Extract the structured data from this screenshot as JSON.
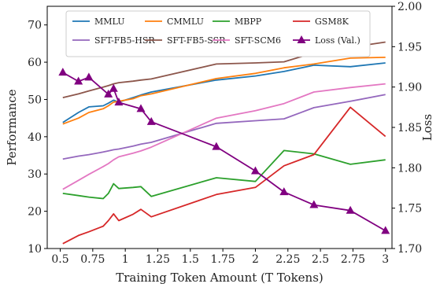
{
  "chart_data": {
    "type": "line",
    "title": "",
    "xlabel": "Training Token Amount (T Tokens)",
    "ylabel": "Performance",
    "y2label": "Loss",
    "xlim": [
      0.4,
      3.05
    ],
    "ylim": [
      10,
      75
    ],
    "y2lim": [
      1.7,
      2.0
    ],
    "x_ticks": [
      0.5,
      0.75,
      1,
      1.25,
      1.5,
      1.75,
      2,
      2.25,
      2.5,
      2.75,
      3
    ],
    "y_ticks": [
      10,
      20,
      30,
      40,
      50,
      60,
      70
    ],
    "y2_ticks": [
      1.7,
      1.75,
      1.8,
      1.85,
      1.9,
      1.95,
      2.0
    ],
    "legend_position": "top",
    "x": [
      0.52,
      0.64,
      0.72,
      0.83,
      0.87,
      0.91,
      0.95,
      1.06,
      1.12,
      1.2,
      1.7,
      2.0,
      2.22,
      2.45,
      2.73,
      3.0
    ],
    "series": [
      {
        "name": "MMLU",
        "axis": "left",
        "color": "#1f77b4",
        "values": [
          43.8,
          46.5,
          48.0,
          48.3,
          49.0,
          49.8,
          49.3,
          50.5,
          51.2,
          52.0,
          55.2,
          56.3,
          57.5,
          59.2,
          58.8,
          59.8
        ]
      },
      {
        "name": "CMMLU",
        "axis": "left",
        "color": "#ff7f0e",
        "values": [
          43.4,
          45.0,
          46.5,
          47.5,
          48.3,
          49.3,
          49.5,
          50.2,
          51.0,
          51.5,
          55.6,
          57.0,
          58.5,
          59.5,
          61.1,
          61.3
        ]
      },
      {
        "name": "MBPP",
        "axis": "left",
        "color": "#2ca02c",
        "values": [
          24.8,
          24.2,
          23.8,
          23.4,
          24.8,
          27.4,
          26.1,
          26.4,
          26.6,
          24.0,
          29.0,
          28.0,
          36.3,
          35.4,
          32.6,
          33.8
        ]
      },
      {
        "name": "GSM8K",
        "axis": "left",
        "color": "#d62728",
        "values": [
          11.3,
          13.5,
          14.5,
          16.0,
          17.5,
          19.3,
          17.5,
          19.2,
          20.5,
          18.5,
          24.5,
          26.4,
          32.2,
          35.2,
          47.9,
          40.1
        ]
      },
      {
        "name": "SFT-FB5-HSR",
        "axis": "left",
        "color": "#9467bd",
        "values": [
          34.0,
          34.8,
          35.2,
          35.9,
          36.2,
          36.5,
          36.7,
          37.5,
          38.0,
          38.5,
          43.6,
          44.3,
          44.8,
          47.8,
          49.5,
          51.3
        ]
      },
      {
        "name": "SFT-FB5-SSR",
        "axis": "left",
        "color": "#8c564b",
        "values": [
          50.5,
          51.5,
          52.3,
          53.3,
          53.7,
          54.2,
          54.5,
          54.9,
          55.2,
          55.5,
          59.5,
          59.8,
          60.1,
          62.5,
          64.0,
          65.4
        ]
      },
      {
        "name": "SFT-SCM6",
        "axis": "left",
        "color": "#e377c2",
        "values": [
          25.9,
          28.3,
          29.9,
          32.0,
          32.8,
          33.8,
          34.6,
          35.6,
          36.2,
          37.2,
          45.0,
          47.0,
          48.9,
          52.0,
          53.2,
          54.2
        ]
      },
      {
        "name": "Loss (Val.)",
        "axis": "right",
        "color": "#800080",
        "marker": "triangle",
        "x": [
          0.52,
          0.64,
          0.72,
          0.87,
          0.91,
          0.95,
          1.12,
          1.2,
          1.7,
          2.0,
          2.22,
          2.45,
          2.73,
          3.0
        ],
        "values": [
          1.918,
          1.907,
          1.912,
          1.891,
          1.898,
          1.881,
          1.873,
          1.857,
          1.826,
          1.796,
          1.77,
          1.754,
          1.747,
          1.722
        ]
      }
    ]
  }
}
